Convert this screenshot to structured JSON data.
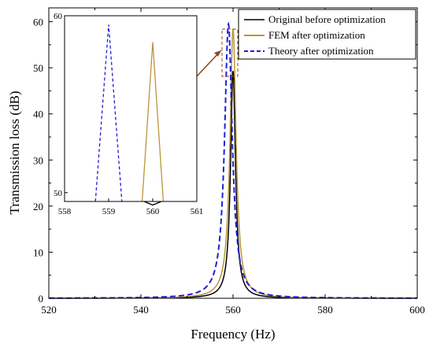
{
  "chart_data": {
    "type": "line",
    "title": "",
    "xlabel": "Frequency (Hz)",
    "ylabel": "Transmission loss (dB)",
    "xlim": [
      520,
      600
    ],
    "ylim": [
      0,
      63
    ],
    "xticks": [
      "520",
      "540",
      "560",
      "580",
      "600"
    ],
    "yticks": [
      "0",
      "10",
      "20",
      "30",
      "40",
      "50",
      "60"
    ],
    "grid": false,
    "legend_position": "top-right",
    "series": [
      {
        "name": "Original before optimization",
        "color": "#000000",
        "style": "solid",
        "peak_x": 560.0,
        "peak_y": 49.3,
        "halfwidth": 0.65
      },
      {
        "name": "FEM after optimization",
        "color": "#B8963A",
        "style": "solid",
        "peak_x": 560.0,
        "peak_y": 58.5,
        "halfwidth": 0.8
      },
      {
        "name": "Theory after optimization",
        "color": "#1F1FD6",
        "style": "dashed",
        "peak_x": 559.0,
        "peak_y": 59.5,
        "halfwidth": 1.0
      }
    ],
    "inset": {
      "xlim": [
        558,
        561
      ],
      "ylim": [
        49.5,
        60
      ],
      "xticks": [
        "558",
        "559",
        "560",
        "561"
      ],
      "yticks": [
        "50",
        "60"
      ]
    }
  }
}
